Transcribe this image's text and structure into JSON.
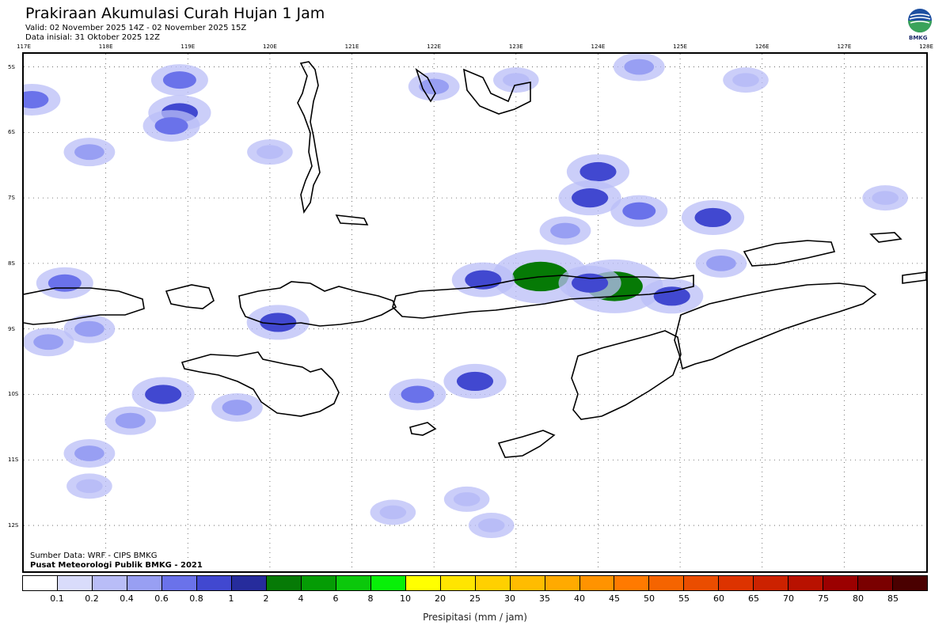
{
  "header": {
    "title": "Prakiraan Akumulasi Curah Hujan 1 Jam",
    "valid": "Valid: 02 November 2025 14Z - 02 November 2025 15Z",
    "initial": "Data inisial: 31 Oktober 2025 12Z",
    "logo_text": "BMKG"
  },
  "map": {
    "lon_ticks": [
      "117E",
      "118E",
      "119E",
      "120E",
      "121E",
      "122E",
      "123E",
      "124E",
      "125E",
      "126E",
      "127E",
      "128E"
    ],
    "lat_ticks": [
      "5S",
      "6S",
      "7S",
      "8S",
      "9S",
      "10S",
      "11S",
      "12S"
    ],
    "gridline_style": "dotted",
    "region": "Nusa Tenggara, Sumba, Flores, Timor, Flores Sea",
    "rain_cells": [
      {
        "lon": 123.3,
        "lat": 8.2,
        "level_mm": 2
      },
      {
        "lon": 124.2,
        "lat": 8.35,
        "level_mm": 2
      },
      {
        "lon": 122.6,
        "lat": 8.25,
        "level_mm": 0.8
      },
      {
        "lon": 123.9,
        "lat": 8.3,
        "level_mm": 0.8
      },
      {
        "lon": 124.9,
        "lat": 8.5,
        "level_mm": 0.8
      },
      {
        "lon": 120.1,
        "lat": 8.9,
        "level_mm": 0.8
      },
      {
        "lon": 124.0,
        "lat": 6.6,
        "level_mm": 0.8
      },
      {
        "lon": 123.9,
        "lat": 7.0,
        "level_mm": 0.8
      },
      {
        "lon": 125.4,
        "lat": 7.3,
        "level_mm": 0.8
      },
      {
        "lon": 124.5,
        "lat": 7.2,
        "level_mm": 0.6
      },
      {
        "lon": 118.7,
        "lat": 10.0,
        "level_mm": 0.8
      },
      {
        "lon": 118.9,
        "lat": 5.2,
        "level_mm": 0.6
      },
      {
        "lon": 118.9,
        "lat": 5.7,
        "level_mm": 0.8
      },
      {
        "lon": 118.8,
        "lat": 5.9,
        "level_mm": 0.6
      },
      {
        "lon": 122.5,
        "lat": 9.8,
        "level_mm": 0.8
      },
      {
        "lon": 121.8,
        "lat": 10.0,
        "level_mm": 0.6
      },
      {
        "lon": 117.1,
        "lat": 5.5,
        "level_mm": 0.6
      },
      {
        "lon": 117.5,
        "lat": 8.3,
        "level_mm": 0.6
      },
      {
        "lon": 117.3,
        "lat": 9.2,
        "level_mm": 0.4
      },
      {
        "lon": 118.3,
        "lat": 10.4,
        "level_mm": 0.4
      },
      {
        "lon": 117.8,
        "lat": 10.9,
        "level_mm": 0.4
      },
      {
        "lon": 123.6,
        "lat": 7.5,
        "level_mm": 0.4
      },
      {
        "lon": 125.5,
        "lat": 8.0,
        "level_mm": 0.4
      },
      {
        "lon": 117.8,
        "lat": 9.0,
        "level_mm": 0.4
      },
      {
        "lon": 122.0,
        "lat": 5.3,
        "level_mm": 0.4
      },
      {
        "lon": 123.0,
        "lat": 5.2,
        "level_mm": 0.2
      },
      {
        "lon": 124.5,
        "lat": 5.0,
        "level_mm": 0.4
      },
      {
        "lon": 125.8,
        "lat": 5.2,
        "level_mm": 0.2
      },
      {
        "lon": 127.5,
        "lat": 7.0,
        "level_mm": 0.2
      },
      {
        "lon": 122.4,
        "lat": 11.6,
        "level_mm": 0.2
      },
      {
        "lon": 121.5,
        "lat": 11.8,
        "level_mm": 0.2
      },
      {
        "lon": 122.7,
        "lat": 12.0,
        "level_mm": 0.2
      },
      {
        "lon": 119.6,
        "lat": 10.2,
        "level_mm": 0.4
      },
      {
        "lon": 117.8,
        "lat": 6.3,
        "level_mm": 0.4
      },
      {
        "lon": 120.0,
        "lat": 6.3,
        "level_mm": 0.2
      },
      {
        "lon": 117.8,
        "lat": 11.4,
        "level_mm": 0.2
      }
    ]
  },
  "sources": {
    "line1": "Sumber Data: WRF - CIPS BMKG",
    "line2": "Pusat Meteorologi Publik BMKG - 2021"
  },
  "legend": {
    "labels": [
      "0.1",
      "0.2",
      "0.4",
      "0.6",
      "0.8",
      "1",
      "2",
      "4",
      "6",
      "8",
      "10",
      "20",
      "25",
      "30",
      "35",
      "40",
      "45",
      "50",
      "55",
      "60",
      "65",
      "70",
      "75",
      "80",
      "85"
    ],
    "colors": [
      "#ffffff",
      "#d9dcfb",
      "#b9bdf7",
      "#989ff3",
      "#6a72ea",
      "#4148d0",
      "#262c9c",
      "#067a06",
      "#059c05",
      "#0bc80b",
      "#08f008",
      "#ffff00",
      "#ffe500",
      "#ffd000",
      "#ffbc00",
      "#ffaa00",
      "#ff9300",
      "#ff7a00",
      "#f56400",
      "#ea4d00",
      "#dd3300",
      "#cc2200",
      "#b81100",
      "#9b0000",
      "#7a0000",
      "#4a0000"
    ],
    "unit_label": "Presipitasi (mm / jam)"
  }
}
